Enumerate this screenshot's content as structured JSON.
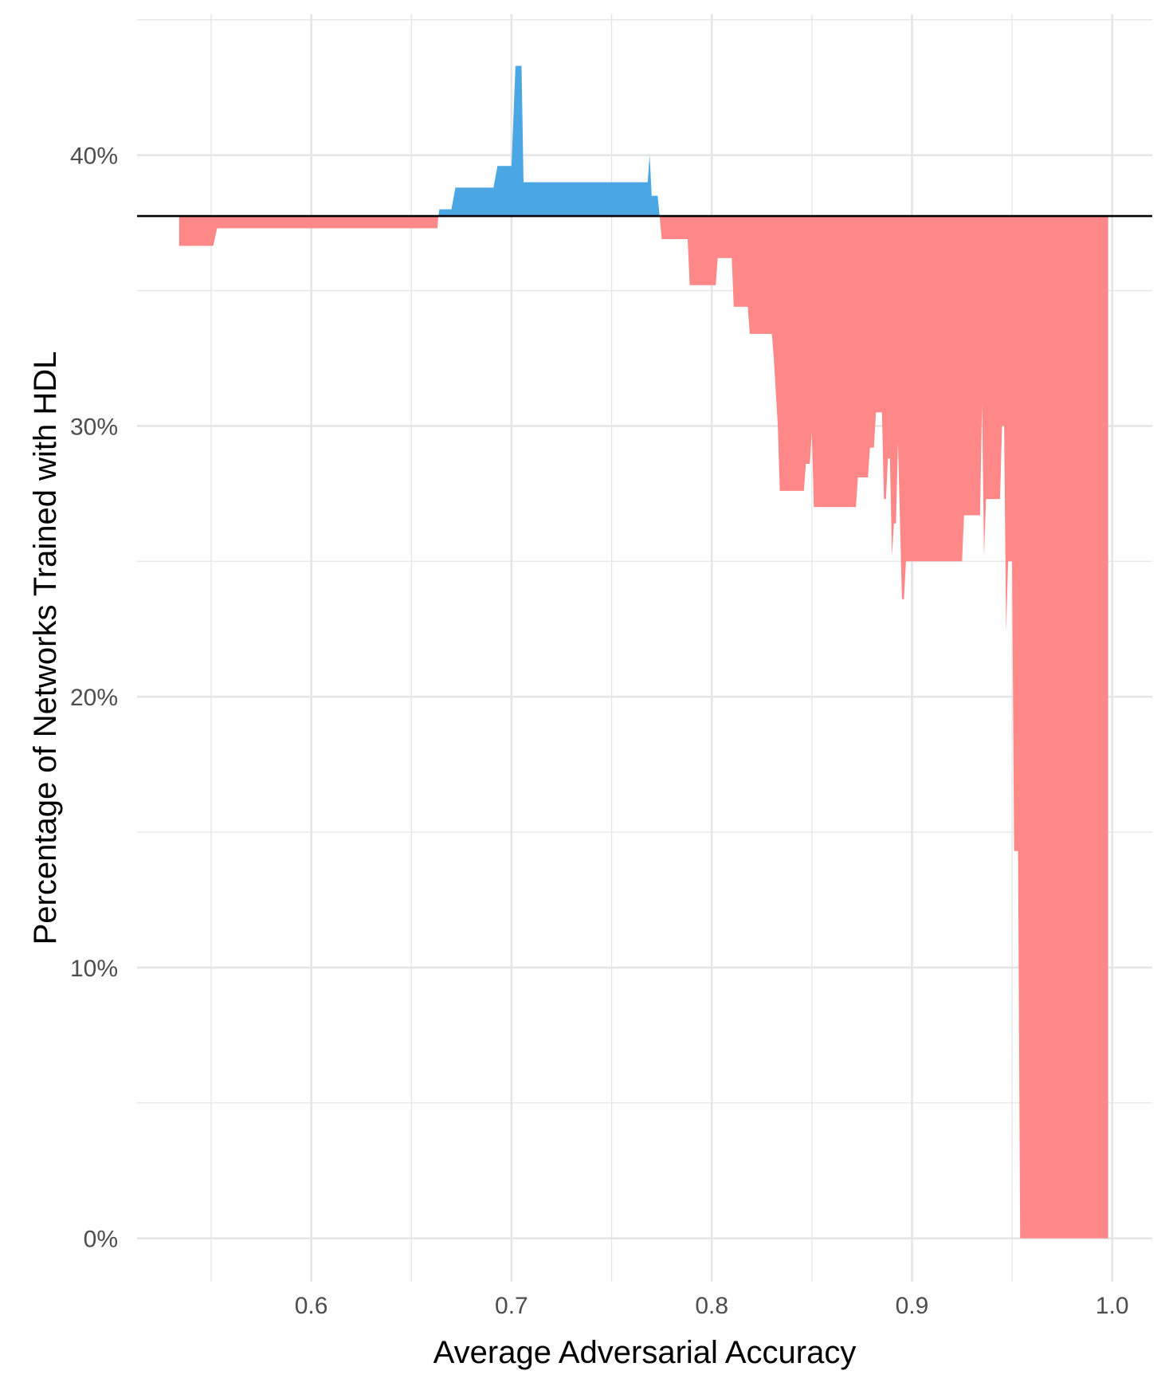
{
  "chart_data": {
    "type": "area",
    "title": "",
    "xlabel": "Average Adversarial Accuracy",
    "ylabel": "Percentage of Networks Trained with HDL",
    "xlim": [
      0.513,
      1.02
    ],
    "ylim": [
      -0.016,
      0.452
    ],
    "x_ticks": [
      0.6,
      0.7,
      0.8,
      0.9,
      1.0
    ],
    "x_tick_labels": [
      "0.6",
      "0.7",
      "0.8",
      "0.9",
      "1.0"
    ],
    "y_ticks": [
      0.0,
      0.1,
      0.2,
      0.3,
      0.4
    ],
    "y_tick_labels": [
      "0%",
      "10%",
      "20%",
      "30%",
      "40%"
    ],
    "grid": true,
    "legend": "none",
    "reference_line": 0.3775,
    "colors": {
      "above": "#4ba6e4",
      "below": "#fe8888",
      "reference": "#000000",
      "grid": "#e5e5e5"
    },
    "series": [
      {
        "x": [
          0.534,
          0.551,
          0.553,
          0.663,
          0.664,
          0.67,
          0.672,
          0.691,
          0.693,
          0.698,
          0.699,
          0.7,
          0.702,
          0.703,
          0.705,
          0.706,
          0.708,
          0.768,
          0.769,
          0.77,
          0.772,
          0.773,
          0.775,
          0.776,
          0.788,
          0.789,
          0.791,
          0.802,
          0.803,
          0.805,
          0.81,
          0.811,
          0.813,
          0.818,
          0.819,
          0.821,
          0.83,
          0.831,
          0.833,
          0.834,
          0.835,
          0.836,
          0.846,
          0.847,
          0.849,
          0.85,
          0.851,
          0.852,
          0.853,
          0.854,
          0.855,
          0.872,
          0.873,
          0.875,
          0.878,
          0.879,
          0.881,
          0.882,
          0.883,
          0.885,
          0.886,
          0.887,
          0.888,
          0.889,
          0.89,
          0.891,
          0.892,
          0.893,
          0.895,
          0.896,
          0.897,
          0.898,
          0.899,
          0.9,
          0.901,
          0.902,
          0.925,
          0.926,
          0.928,
          0.934,
          0.935,
          0.936,
          0.937,
          0.938,
          0.944,
          0.945,
          0.946,
          0.947,
          0.948,
          0.949,
          0.95,
          0.951,
          0.952,
          0.953,
          0.954,
          0.955,
          0.998
        ],
        "y": [
          0.3665,
          0.3665,
          0.373,
          0.373,
          0.38,
          0.38,
          0.388,
          0.388,
          0.396,
          0.396,
          0.396,
          0.396,
          0.433,
          0.433,
          0.433,
          0.39,
          0.39,
          0.39,
          0.4,
          0.385,
          0.385,
          0.385,
          0.369,
          0.369,
          0.369,
          0.352,
          0.352,
          0.352,
          0.362,
          0.362,
          0.362,
          0.344,
          0.344,
          0.344,
          0.334,
          0.334,
          0.334,
          0.325,
          0.3,
          0.276,
          0.276,
          0.276,
          0.276,
          0.286,
          0.286,
          0.298,
          0.27,
          0.27,
          0.27,
          0.27,
          0.27,
          0.27,
          0.281,
          0.281,
          0.281,
          0.292,
          0.292,
          0.305,
          0.305,
          0.305,
          0.273,
          0.273,
          0.288,
          0.288,
          0.252,
          0.264,
          0.264,
          0.294,
          0.236,
          0.236,
          0.25,
          0.25,
          0.25,
          0.25,
          0.25,
          0.25,
          0.25,
          0.267,
          0.267,
          0.267,
          0.308,
          0.252,
          0.273,
          0.273,
          0.273,
          0.3,
          0.3,
          0.224,
          0.25,
          0.25,
          0.25,
          0.143,
          0.143,
          0.143,
          0.0,
          0.0,
          0.0
        ]
      }
    ]
  }
}
